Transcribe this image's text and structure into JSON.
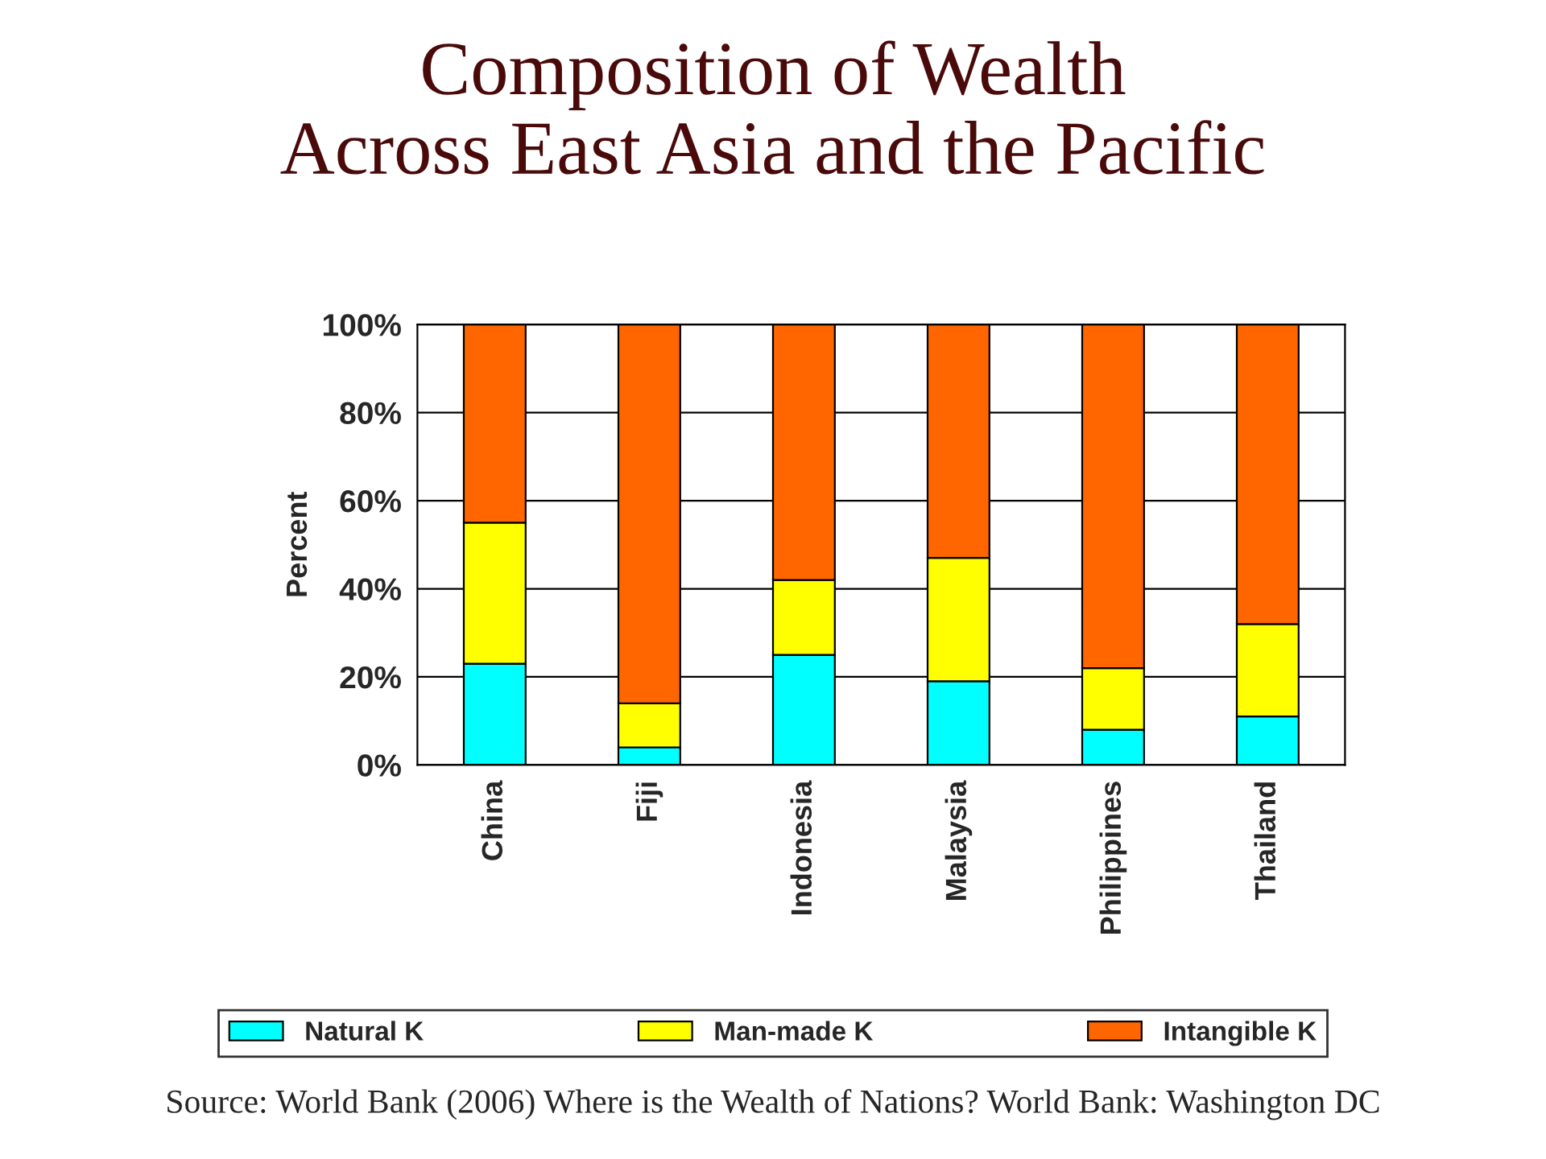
{
  "chart_data": {
    "type": "bar",
    "stacked": true,
    "title": "Composition of Wealth\nAcross East Asia and the Pacific",
    "ylabel": "Percent",
    "categories": [
      "China",
      "Fiji",
      "Indonesia",
      "Malaysia",
      "Philippines",
      "Thailand"
    ],
    "series": [
      {
        "name": "Natural K",
        "color": "#00ffff",
        "values": [
          23,
          4,
          25,
          19,
          8,
          11
        ]
      },
      {
        "name": "Man-made K",
        "color": "#ffff00",
        "values": [
          32,
          10,
          17,
          28,
          14,
          21
        ]
      },
      {
        "name": "Intangible K",
        "color": "#ff6600",
        "values": [
          45,
          86,
          58,
          53,
          78,
          68
        ]
      }
    ],
    "ylim": [
      0,
      100
    ],
    "yticks": [
      {
        "value": 0,
        "label": "0%"
      },
      {
        "value": 20,
        "label": "20%"
      },
      {
        "value": 40,
        "label": "40%"
      },
      {
        "value": 60,
        "label": "60%"
      },
      {
        "value": 80,
        "label": "80%"
      },
      {
        "value": 100,
        "label": "100%"
      }
    ],
    "grid": "y",
    "legend": "bottom",
    "annotations": [
      "Source: World Bank (2006) Where is the Wealth of Nations? World Bank: Washington DC"
    ]
  }
}
